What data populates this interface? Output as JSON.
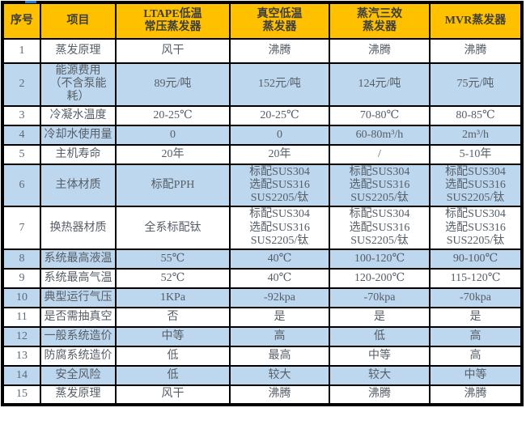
{
  "artifact": {
    "color": "#1E78D7"
  },
  "table": {
    "colors": {
      "header_bg": "#FFC000",
      "header_text": "#3E3E3E",
      "row_bg": "#FFFFFF",
      "row_alt_bg": "#BDD7EE",
      "border": "#000000",
      "body_text": "#565E66",
      "number_text": "#5F6B77"
    },
    "columns": [
      "序号",
      "项目",
      "LTAPE低温\n常压蒸发器",
      "真空低温\n蒸发器",
      "蒸汽三效\n蒸发器",
      "MVR蒸发器"
    ],
    "rows": [
      {
        "no": "1",
        "item": "蒸发原理",
        "values": [
          "风干",
          "沸腾",
          "沸腾",
          "沸腾"
        ]
      },
      {
        "no": "2",
        "item": "能源费用\n（不含泵能\n耗）",
        "values": [
          "89元/吨",
          "152元/吨",
          "124元/吨",
          "75元/吨"
        ]
      },
      {
        "no": "3",
        "item": "冷凝水温度",
        "values": [
          "20-25℃",
          "20-25℃",
          "70-80℃",
          "80-85℃"
        ]
      },
      {
        "no": "4",
        "item": "冷却水使用量",
        "values": [
          "0",
          "0",
          "60-80m³/h",
          "2m³/h"
        ]
      },
      {
        "no": "5",
        "item": "主机寿命",
        "values": [
          "20年",
          "20年",
          "/",
          "5-10年"
        ]
      },
      {
        "no": "6",
        "item": "主体材质",
        "values": [
          "标配PPH",
          "标配SUS304\n选配SUS316\nSUS2205/钛",
          "标配SUS304\n选配SUS316\nSUS2205/钛",
          "标配SUS304\n选配SUS316\nSUS2205/钛"
        ]
      },
      {
        "no": "7",
        "item": "换热器材质",
        "values": [
          "全系标配钛",
          "标配SUS304\n选配SUS316\nSUS2205/钛",
          "标配SUS304\n选配SUS316\nSUS2205/钛",
          "标配SUS304\n选配SUS316\nSUS2205/钛"
        ]
      },
      {
        "no": "8",
        "item": "系统最高液温",
        "values": [
          "55℃",
          "40℃",
          "100-120℃",
          "90-100℃"
        ]
      },
      {
        "no": "9",
        "item": "系统最高气温",
        "values": [
          "52℃",
          "40℃",
          "120-200℃",
          "115-120℃"
        ]
      },
      {
        "no": "10",
        "item": "典型运行气压",
        "values": [
          "1KPa",
          "-92kpa",
          "-70kpa",
          "-70kpa"
        ]
      },
      {
        "no": "11",
        "item": "是否需抽真空",
        "values": [
          "否",
          "是",
          "是",
          "是"
        ]
      },
      {
        "no": "12",
        "item": "一般系统造价",
        "values": [
          "中等",
          "高",
          "低",
          "高"
        ]
      },
      {
        "no": "13",
        "item": "防腐系统造价",
        "values": [
          "低",
          "最高",
          "中等",
          "高"
        ]
      },
      {
        "no": "14",
        "item": "安全风险",
        "values": [
          "低",
          "较大",
          "较大",
          "中等"
        ]
      },
      {
        "no": "15",
        "item": "蒸发原理",
        "values": [
          "风干",
          "沸腾",
          "沸腾",
          "沸腾"
        ]
      }
    ]
  }
}
